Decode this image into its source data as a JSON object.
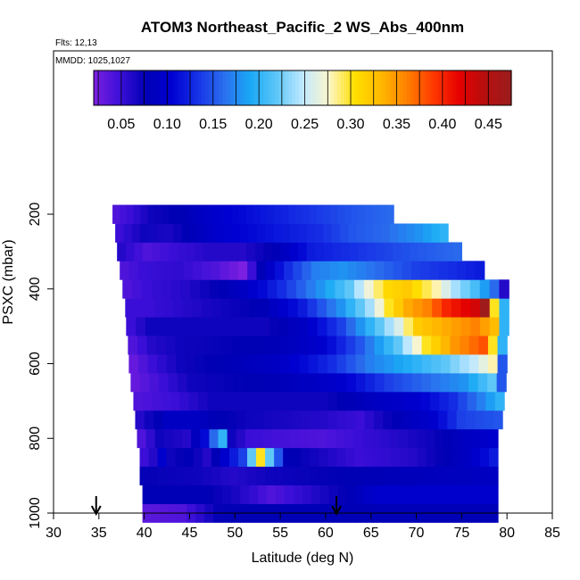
{
  "chart_data": {
    "type": "heatmap",
    "title": "ATOM3 Northeast_Pacific_2 WS_Abs_400nm",
    "flights_note": "Flts: 12,13",
    "date_note": "MMDD: 1025,1027",
    "xlabel": "Latitude (deg N)",
    "ylabel": "PSXC (mbar)",
    "xlim": [
      30,
      85
    ],
    "ylim": [
      1000,
      0
    ],
    "xticks": [
      "30",
      "35",
      "40",
      "45",
      "50",
      "55",
      "60",
      "65",
      "70",
      "75",
      "80",
      "85"
    ],
    "yticks": [
      "200",
      "400",
      "600",
      "800",
      "1000"
    ],
    "colorbar": {
      "range": [
        0.02,
        0.475
      ],
      "tick_values": [
        0.05,
        0.1,
        0.15,
        0.2,
        0.25,
        0.3,
        0.35,
        0.4,
        0.45
      ],
      "tick_labels": [
        "0.05",
        "0.10",
        "0.15",
        "0.20",
        "0.25",
        "0.30",
        "0.35",
        "0.40",
        "0.45"
      ],
      "colors": [
        "#7b1fe0",
        "#3d0fd8",
        "#0000b4",
        "#0000d2",
        "#1733e6",
        "#2a6fee",
        "#1aa8f5",
        "#5cc6f8",
        "#bfe8ff",
        "#fdf6cc",
        "#ffe000",
        "#ffb800",
        "#ff8000",
        "#ff3a00",
        "#e60000",
        "#b60f0f",
        "#9a1d1d"
      ]
    },
    "arrows_latitude": [
      34.7,
      61.2
    ],
    "rows": [
      {
        "p": 1000,
        "lat": [
          39.8,
          79.0
        ],
        "keys": [
          [
            0,
            0.035
          ],
          [
            4,
            0.04
          ],
          [
            8,
            0.075
          ],
          [
            20,
            0.08
          ],
          [
            39,
            0.08
          ]
        ]
      },
      {
        "p": 950,
        "lat": [
          39.8,
          79.0
        ],
        "keys": [
          [
            0,
            0.08
          ],
          [
            6,
            0.08
          ],
          [
            10,
            0.065
          ],
          [
            14,
            0.04
          ],
          [
            22,
            0.075
          ],
          [
            26,
            0.1
          ],
          [
            39,
            0.1
          ]
        ]
      },
      {
        "p": 900,
        "lat": [
          39.5,
          79.0
        ],
        "keys": [
          [
            0,
            0.075
          ],
          [
            6,
            0.07
          ],
          [
            10,
            0.06
          ],
          [
            14,
            0.07
          ],
          [
            20,
            0.075
          ],
          [
            39,
            0.09
          ]
        ]
      },
      {
        "p": 850,
        "lat": [
          39.5,
          79.0
        ],
        "keys": [
          [
            0,
            0.05
          ],
          [
            1,
            0.06
          ],
          [
            2,
            0.1
          ],
          [
            3,
            0.07
          ],
          [
            5,
            0.08
          ],
          [
            7,
            0.06
          ],
          [
            9,
            0.1
          ],
          [
            11,
            0.14
          ],
          [
            12,
            0.22
          ],
          [
            13,
            0.3
          ],
          [
            14,
            0.22
          ],
          [
            16,
            0.08
          ],
          [
            24,
            0.05
          ],
          [
            30,
            0.06
          ],
          [
            34,
            0.08
          ],
          [
            36,
            0.09
          ],
          [
            39,
            0.12
          ]
        ]
      },
      {
        "p": 800,
        "lat": [
          39.2,
          79.0
        ],
        "keys": [
          [
            0,
            0.04
          ],
          [
            2,
            0.07
          ],
          [
            5,
            0.06
          ],
          [
            7,
            0.11
          ],
          [
            8,
            0.16
          ],
          [
            9,
            0.2
          ],
          [
            10,
            0.07
          ],
          [
            12,
            0.05
          ],
          [
            20,
            0.04
          ],
          [
            28,
            0.06
          ],
          [
            32,
            0.07
          ],
          [
            36,
            0.09
          ],
          [
            39,
            0.1
          ]
        ]
      },
      {
        "p": 750,
        "lat": [
          39.0,
          79.5
        ],
        "keys": [
          [
            0,
            0.06
          ],
          [
            3,
            0.09
          ],
          [
            6,
            0.09
          ],
          [
            8,
            0.08
          ],
          [
            12,
            0.07
          ],
          [
            20,
            0.06
          ],
          [
            24,
            0.05
          ],
          [
            28,
            0.08
          ],
          [
            32,
            0.1
          ],
          [
            35,
            0.14
          ],
          [
            39,
            0.15
          ]
        ]
      },
      {
        "p": 700,
        "lat": [
          38.8,
          79.7
        ],
        "keys": [
          [
            0,
            0.04
          ],
          [
            4,
            0.05
          ],
          [
            8,
            0.07
          ],
          [
            14,
            0.07
          ],
          [
            20,
            0.07
          ],
          [
            26,
            0.09
          ],
          [
            30,
            0.1
          ],
          [
            34,
            0.13
          ],
          [
            37,
            0.17
          ],
          [
            39,
            0.2
          ]
        ]
      },
      {
        "p": 650,
        "lat": [
          38.5,
          79.9
        ],
        "keys": [
          [
            0,
            0.03
          ],
          [
            3,
            0.05
          ],
          [
            6,
            0.07
          ],
          [
            15,
            0.08
          ],
          [
            22,
            0.1
          ],
          [
            27,
            0.14
          ],
          [
            31,
            0.16
          ],
          [
            35,
            0.18
          ],
          [
            38,
            0.22
          ],
          [
            39,
            0.15
          ]
        ]
      },
      {
        "p": 600,
        "lat": [
          38.3,
          80.0
        ],
        "keys": [
          [
            0,
            0.03
          ],
          [
            2,
            0.05
          ],
          [
            5,
            0.07
          ],
          [
            15,
            0.09
          ],
          [
            21,
            0.13
          ],
          [
            25,
            0.17
          ],
          [
            30,
            0.2
          ],
          [
            33,
            0.22
          ],
          [
            36,
            0.25
          ],
          [
            38,
            0.28
          ],
          [
            39,
            0.15
          ]
        ]
      },
      {
        "p": 550,
        "lat": [
          38.2,
          80.0
        ],
        "keys": [
          [
            0,
            0.04
          ],
          [
            2,
            0.06
          ],
          [
            5,
            0.07
          ],
          [
            15,
            0.08
          ],
          [
            20,
            0.1
          ],
          [
            24,
            0.15
          ],
          [
            28,
            0.22
          ],
          [
            31,
            0.3
          ],
          [
            34,
            0.35
          ],
          [
            37,
            0.38
          ],
          [
            38,
            0.3
          ],
          [
            39,
            0.2
          ]
        ]
      },
      {
        "p": 500,
        "lat": [
          38.0,
          80.2
        ],
        "keys": [
          [
            0,
            0.05
          ],
          [
            2,
            0.07
          ],
          [
            4,
            0.07
          ],
          [
            14,
            0.07
          ],
          [
            18,
            0.09
          ],
          [
            22,
            0.14
          ],
          [
            26,
            0.22
          ],
          [
            28,
            0.26
          ],
          [
            30,
            0.32
          ],
          [
            33,
            0.34
          ],
          [
            36,
            0.36
          ],
          [
            38,
            0.33
          ],
          [
            39,
            0.2
          ]
        ]
      },
      {
        "p": 450,
        "lat": [
          37.9,
          80.2
        ],
        "keys": [
          [
            0,
            0.05
          ],
          [
            2,
            0.05
          ],
          [
            6,
            0.06
          ],
          [
            14,
            0.08
          ],
          [
            18,
            0.12
          ],
          [
            22,
            0.18
          ],
          [
            25,
            0.24
          ],
          [
            27,
            0.3
          ],
          [
            29,
            0.34
          ],
          [
            31,
            0.36
          ],
          [
            33,
            0.4
          ],
          [
            36,
            0.43
          ],
          [
            37,
            0.47
          ],
          [
            38,
            0.3
          ],
          [
            39,
            0.2
          ]
        ]
      },
      {
        "p": 400,
        "lat": [
          37.6,
          80.2
        ],
        "keys": [
          [
            0,
            0.04
          ],
          [
            2,
            0.05
          ],
          [
            6,
            0.06
          ],
          [
            12,
            0.09
          ],
          [
            16,
            0.13
          ],
          [
            20,
            0.18
          ],
          [
            23,
            0.22
          ],
          [
            25,
            0.27
          ],
          [
            27,
            0.31
          ],
          [
            29,
            0.32
          ],
          [
            32,
            0.28
          ],
          [
            34,
            0.24
          ],
          [
            36,
            0.21
          ],
          [
            38,
            0.16
          ],
          [
            39,
            0.06
          ]
        ]
      },
      {
        "p": 350,
        "lat": [
          37.3,
          77.5
        ],
        "keys": [
          [
            0,
            0.04
          ],
          [
            2,
            0.05
          ],
          [
            6,
            0.055
          ],
          [
            10,
            0.04
          ],
          [
            13,
            0.02
          ],
          [
            15,
            0.08
          ],
          [
            18,
            0.13
          ],
          [
            21,
            0.17
          ],
          [
            24,
            0.18
          ],
          [
            28,
            0.16
          ],
          [
            32,
            0.14
          ],
          [
            36,
            0.13
          ],
          [
            39,
            0.12
          ]
        ]
      },
      {
        "p": 300,
        "lat": [
          37.0,
          75.0
        ],
        "keys": [
          [
            0,
            0.06
          ],
          [
            3,
            0.04
          ],
          [
            6,
            0.05
          ],
          [
            10,
            0.06
          ],
          [
            14,
            0.06
          ],
          [
            18,
            0.08
          ],
          [
            22,
            0.12
          ],
          [
            26,
            0.13
          ],
          [
            30,
            0.14
          ],
          [
            34,
            0.15
          ],
          [
            39,
            0.16
          ]
        ]
      },
      {
        "p": 250,
        "lat": [
          36.8,
          73.5
        ],
        "keys": [
          [
            0,
            0.05
          ],
          [
            3,
            0.07
          ],
          [
            6,
            0.065
          ],
          [
            12,
            0.1
          ],
          [
            16,
            0.11
          ],
          [
            20,
            0.12
          ],
          [
            24,
            0.13
          ],
          [
            28,
            0.15
          ],
          [
            32,
            0.16
          ],
          [
            36,
            0.18
          ],
          [
            39,
            0.2
          ]
        ]
      },
      {
        "p": 200,
        "lat": [
          36.5,
          67.5
        ],
        "keys": [
          [
            0,
            0.04
          ],
          [
            2,
            0.05
          ],
          [
            5,
            0.07
          ],
          [
            10,
            0.08
          ],
          [
            14,
            0.1
          ],
          [
            18,
            0.11
          ],
          [
            22,
            0.12
          ],
          [
            26,
            0.13
          ],
          [
            30,
            0.14
          ],
          [
            34,
            0.15
          ],
          [
            39,
            0.16
          ]
        ]
      }
    ]
  }
}
